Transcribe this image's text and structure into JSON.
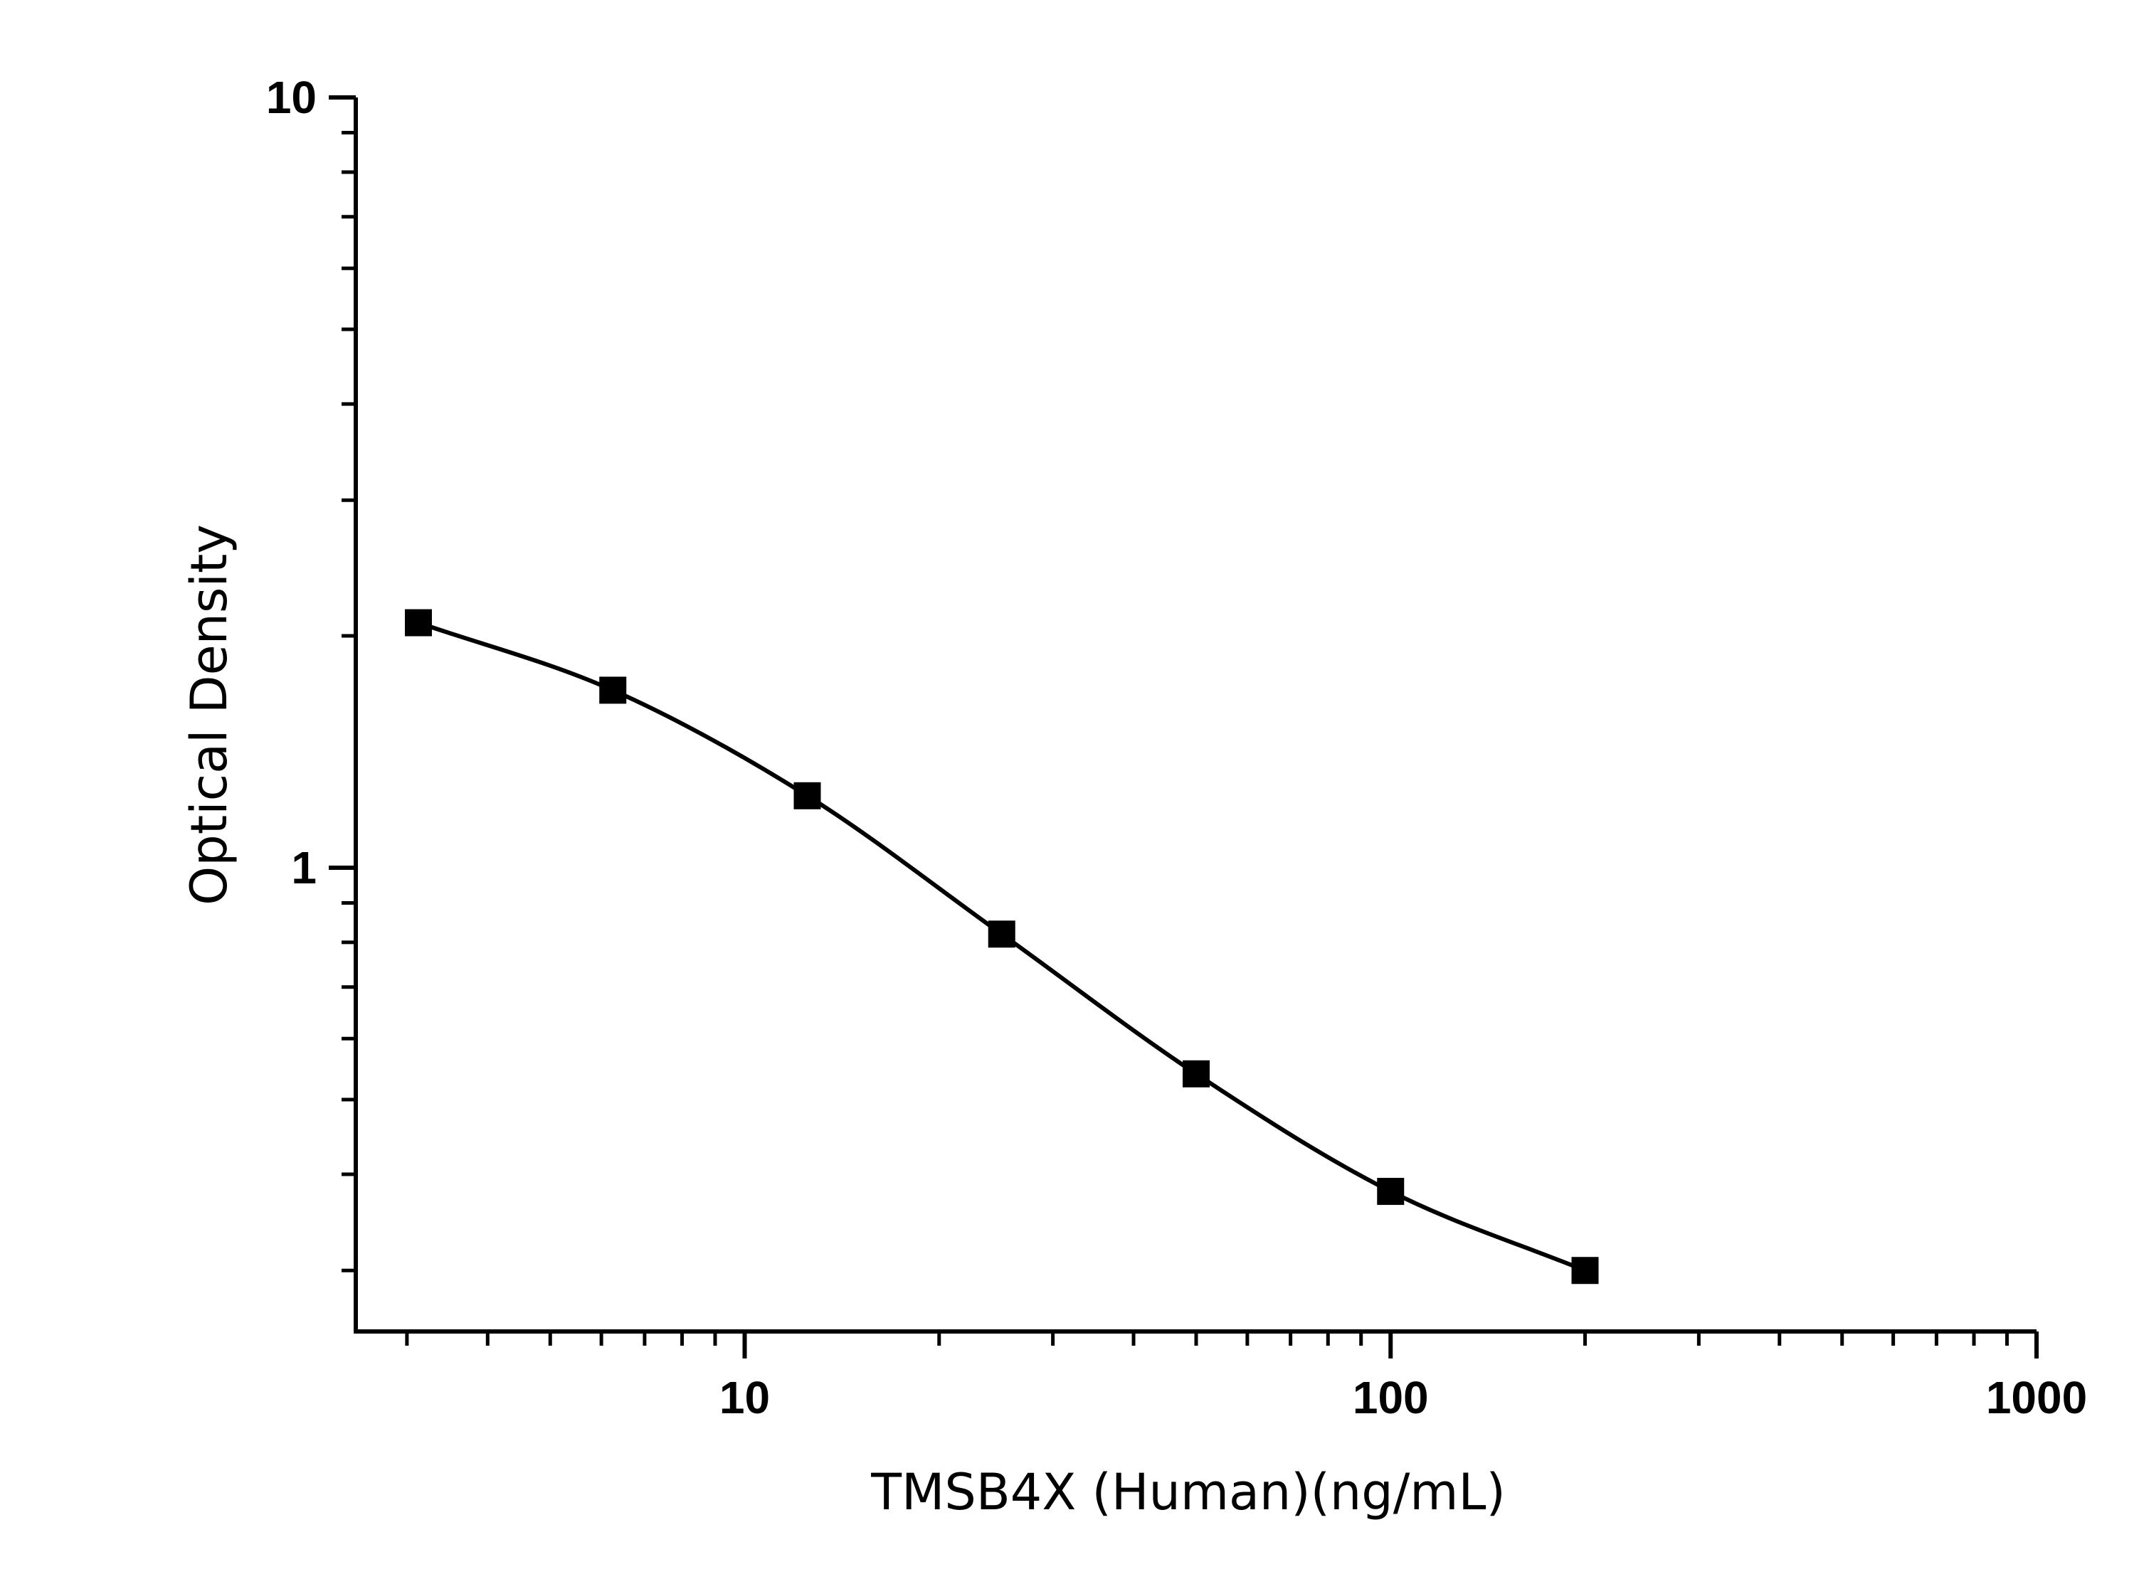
{
  "chart_data": {
    "type": "scatter",
    "title": "",
    "xlabel": "TMSB4X (Human)(ng/mL)",
    "ylabel": "Optical Density",
    "x_scale": "log",
    "y_scale": "log",
    "xlim": [
      2.5,
      1000
    ],
    "ylim": [
      0.25,
      10
    ],
    "x_ticks": [
      "10",
      "100",
      "1000"
    ],
    "y_ticks": [
      "1",
      "10"
    ],
    "grid": false,
    "series": [
      {
        "marker": "square",
        "line": "fitted-curve",
        "color": "#000000",
        "x": [
          3.125,
          6.25,
          12.5,
          25,
          50,
          100,
          200
        ],
        "y": [
          2.08,
          1.7,
          1.24,
          0.82,
          0.54,
          0.38,
          0.3
        ]
      }
    ]
  }
}
